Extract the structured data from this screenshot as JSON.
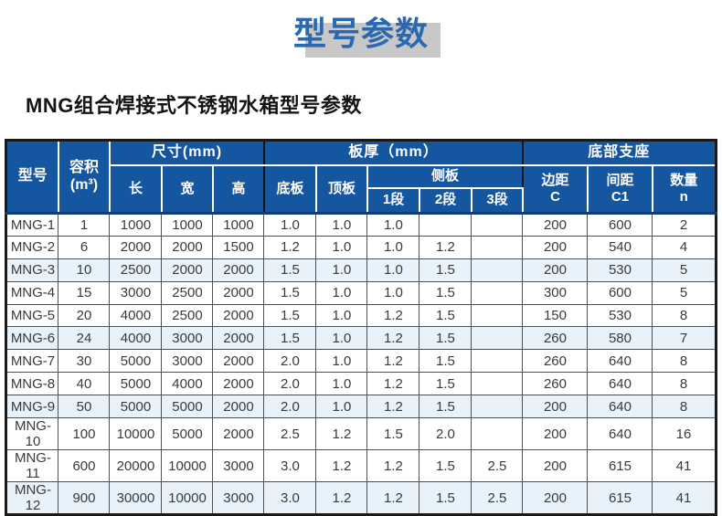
{
  "page": {
    "title": "型号参数",
    "subtitle": "MNG组合焊接式不锈钢水箱型号参数"
  },
  "colors": {
    "header_blue": "#1556a0",
    "title_blue": "#2a69b0",
    "title_shadow": "#c8c8c8",
    "alt_row": "#e8f2fa",
    "body_text": "#3a3a3a"
  },
  "table": {
    "header": {
      "model": "型号",
      "volume_line1": "容积",
      "volume_line2": "(m³)",
      "size_group": "尺寸(mm)",
      "length": "长",
      "width": "宽",
      "height": "高",
      "thickness_group": "板厚（mm）",
      "bottom_plate": "底板",
      "top_plate": "顶板",
      "side_plate": "侧板",
      "seg1": "1段",
      "seg2": "2段",
      "seg3": "3段",
      "support_group": "底部支座",
      "edge_line1": "边距",
      "edge_line2": "C",
      "spacing_line1": "间距",
      "spacing_line2": "C1",
      "qty_line1": "数量",
      "qty_line2": "n"
    },
    "rows": [
      [
        "MNG-1",
        "1",
        "1000",
        "1000",
        "1000",
        "1.0",
        "1.0",
        "1.0",
        "",
        "",
        "200",
        "600",
        "2"
      ],
      [
        "MNG-2",
        "6",
        "2000",
        "2000",
        "1500",
        "1.2",
        "1.0",
        "1.0",
        "1.2",
        "",
        "200",
        "540",
        "4"
      ],
      [
        "MNG-3",
        "10",
        "2500",
        "2000",
        "2000",
        "1.5",
        "1.0",
        "1.0",
        "1.5",
        "",
        "200",
        "530",
        "5"
      ],
      [
        "MNG-4",
        "15",
        "3000",
        "2500",
        "2000",
        "1.5",
        "1.0",
        "1.0",
        "1.5",
        "",
        "300",
        "600",
        "5"
      ],
      [
        "MNG-5",
        "20",
        "4000",
        "2500",
        "2000",
        "1.5",
        "1.0",
        "1.2",
        "1.5",
        "",
        "150",
        "530",
        "8"
      ],
      [
        "MNG-6",
        "24",
        "4000",
        "3000",
        "2000",
        "1.5",
        "1.0",
        "1.2",
        "1.5",
        "",
        "260",
        "580",
        "7"
      ],
      [
        "MNG-7",
        "30",
        "5000",
        "3000",
        "2000",
        "2.0",
        "1.0",
        "1.2",
        "1.5",
        "",
        "260",
        "640",
        "8"
      ],
      [
        "MNG-8",
        "40",
        "5000",
        "4000",
        "2000",
        "2.0",
        "1.0",
        "1.2",
        "1.5",
        "",
        "260",
        "640",
        "8"
      ],
      [
        "MNG-9",
        "50",
        "5000",
        "5000",
        "2000",
        "2.0",
        "1.0",
        "1.2",
        "1.5",
        "",
        "200",
        "640",
        "8"
      ],
      [
        "MNG-10",
        "100",
        "10000",
        "5000",
        "2000",
        "2.5",
        "1.2",
        "1.5",
        "2.0",
        "",
        "200",
        "640",
        "16"
      ],
      [
        "MNG-11",
        "600",
        "20000",
        "10000",
        "3000",
        "3.0",
        "1.2",
        "1.2",
        "1.5",
        "2.5",
        "200",
        "615",
        "41"
      ],
      [
        "MNG-12",
        "900",
        "30000",
        "10000",
        "3000",
        "3.0",
        "1.2",
        "1.2",
        "1.5",
        "2.5",
        "200",
        "615",
        "41"
      ]
    ]
  }
}
